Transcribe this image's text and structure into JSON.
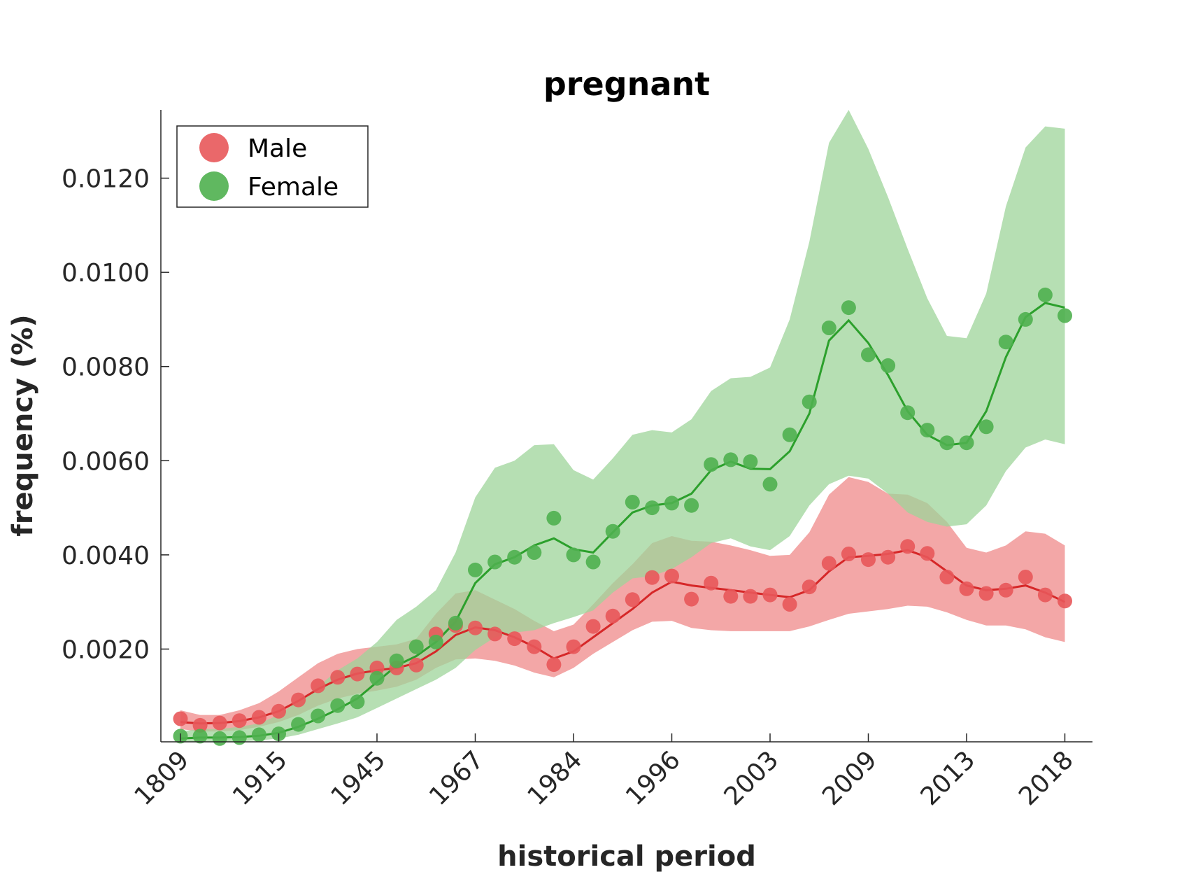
{
  "chart_data": {
    "type": "line",
    "title": "pregnant",
    "xlabel": "historical period",
    "ylabel": "frequency (%)",
    "x_tick_labels": [
      "1809",
      "1915",
      "1945",
      "1967",
      "1984",
      "1996",
      "2003",
      "2009",
      "2013",
      "2018"
    ],
    "x_tick_indices": [
      0,
      5,
      10,
      15,
      20,
      25,
      30,
      35,
      40,
      45
    ],
    "y_ticks": [
      0.002,
      0.004,
      0.006,
      0.008,
      0.01,
      0.012
    ],
    "y_tick_labels": [
      "0.0020",
      "0.0040",
      "0.0060",
      "0.0080",
      "0.0100",
      "0.0120"
    ],
    "ylim": [
      3e-05,
      0.01345
    ],
    "grid": false,
    "legend_position": "top-left",
    "series": [
      {
        "name": "Male",
        "color": "#d62728",
        "marker_color": "#e8585a",
        "band_color": "#ef8a8a",
        "points": [
          0.00052,
          0.00038,
          0.00043,
          0.00048,
          0.00055,
          0.00068,
          0.00092,
          0.00122,
          0.0014,
          0.00147,
          0.0016,
          0.0016,
          0.00166,
          0.00232,
          0.0025,
          0.00245,
          0.00232,
          0.00222,
          0.00205,
          0.00167,
          0.00205,
          0.00248,
          0.0027,
          0.00305,
          0.00352,
          0.00355,
          0.00306,
          0.0034,
          0.00312,
          0.00312,
          0.00315,
          0.00295,
          0.00332,
          0.00382,
          0.00402,
          0.0039,
          0.00395,
          0.00418,
          0.00403,
          0.00353,
          0.00328,
          0.00318,
          0.00325,
          0.00353,
          0.00315,
          0.00302
        ],
        "smooth": [
          0.00045,
          0.00042,
          0.00043,
          0.00047,
          0.00055,
          0.00068,
          0.0009,
          0.00115,
          0.00135,
          0.00148,
          0.00155,
          0.0016,
          0.0017,
          0.00195,
          0.0023,
          0.00246,
          0.0024,
          0.00225,
          0.00205,
          0.0018,
          0.00195,
          0.00225,
          0.00255,
          0.00285,
          0.0032,
          0.00343,
          0.00335,
          0.0033,
          0.00325,
          0.0032,
          0.00315,
          0.0031,
          0.00325,
          0.00365,
          0.00395,
          0.00398,
          0.00402,
          0.0041,
          0.00395,
          0.00365,
          0.00335,
          0.00325,
          0.00328,
          0.00335,
          0.0032,
          0.003
        ],
        "lower": [
          0.0003,
          0.00025,
          0.00025,
          0.00028,
          0.00035,
          0.00045,
          0.0006,
          0.0008,
          0.00095,
          0.00105,
          0.00112,
          0.0012,
          0.00135,
          0.0016,
          0.00178,
          0.0018,
          0.00175,
          0.00165,
          0.0015,
          0.0014,
          0.0016,
          0.0019,
          0.00215,
          0.0024,
          0.00258,
          0.0026,
          0.00245,
          0.0024,
          0.00238,
          0.00238,
          0.00238,
          0.00238,
          0.00248,
          0.00262,
          0.00275,
          0.0028,
          0.00285,
          0.00292,
          0.0029,
          0.00278,
          0.00262,
          0.0025,
          0.0025,
          0.00242,
          0.00225,
          0.00215
        ],
        "upper": [
          0.0007,
          0.0006,
          0.0006,
          0.0007,
          0.00085,
          0.0011,
          0.0014,
          0.0017,
          0.0019,
          0.002,
          0.00205,
          0.0021,
          0.00222,
          0.00275,
          0.00318,
          0.00325,
          0.00305,
          0.00285,
          0.0026,
          0.00238,
          0.00252,
          0.00295,
          0.0034,
          0.0038,
          0.00425,
          0.0044,
          0.0043,
          0.00428,
          0.0042,
          0.0041,
          0.00398,
          0.004,
          0.00448,
          0.00528,
          0.00565,
          0.00555,
          0.0053,
          0.00528,
          0.0051,
          0.0047,
          0.00415,
          0.00405,
          0.0042,
          0.0045,
          0.00445,
          0.0042
        ]
      },
      {
        "name": "Female",
        "color": "#2ca02c",
        "marker_color": "#4fb04f",
        "band_color": "#9ed49a",
        "points": [
          0.00015,
          0.00015,
          0.0001,
          0.00012,
          0.00018,
          0.0002,
          0.0004,
          0.00058,
          0.0008,
          0.00088,
          0.00138,
          0.00175,
          0.00205,
          0.00215,
          0.00255,
          0.00368,
          0.00385,
          0.00395,
          0.00405,
          0.00478,
          0.004,
          0.00385,
          0.0045,
          0.00512,
          0.005,
          0.0051,
          0.00505,
          0.00592,
          0.00602,
          0.00598,
          0.0055,
          0.00655,
          0.00725,
          0.00882,
          0.00925,
          0.00825,
          0.00802,
          0.00702,
          0.00665,
          0.00638,
          0.00638,
          0.00672,
          0.00852,
          0.009,
          0.00952,
          0.00908
        ],
        "smooth": [
          0.0001,
          0.00012,
          0.00012,
          0.00013,
          0.00016,
          0.00022,
          0.00035,
          0.00052,
          0.00072,
          0.00095,
          0.0013,
          0.00165,
          0.00185,
          0.00215,
          0.00258,
          0.0034,
          0.0038,
          0.00395,
          0.0042,
          0.00435,
          0.00412,
          0.00405,
          0.00448,
          0.0049,
          0.00505,
          0.0051,
          0.0053,
          0.0058,
          0.00598,
          0.00583,
          0.00582,
          0.0062,
          0.007,
          0.00855,
          0.00898,
          0.0085,
          0.00782,
          0.00705,
          0.00655,
          0.00633,
          0.00638,
          0.00705,
          0.0082,
          0.00905,
          0.00935,
          0.00925
        ],
        "lower": [
          3e-05,
          3e-05,
          3e-05,
          4e-05,
          6e-05,
          0.0001,
          0.00018,
          0.0003,
          0.00042,
          0.00055,
          0.00075,
          0.00095,
          0.00115,
          0.00135,
          0.0016,
          0.00198,
          0.00225,
          0.00235,
          0.0024,
          0.00255,
          0.00268,
          0.00282,
          0.0032,
          0.0035,
          0.00355,
          0.0037,
          0.00395,
          0.00425,
          0.00435,
          0.00418,
          0.0041,
          0.0044,
          0.00505,
          0.0055,
          0.00568,
          0.00562,
          0.0053,
          0.0049,
          0.0047,
          0.0046,
          0.00465,
          0.00505,
          0.00578,
          0.00628,
          0.00645,
          0.00635
        ],
        "upper": [
          0.00025,
          0.0003,
          0.0003,
          0.00035,
          0.00042,
          0.0006,
          0.0009,
          0.0012,
          0.00155,
          0.0018,
          0.00215,
          0.00262,
          0.0029,
          0.00325,
          0.00405,
          0.00522,
          0.00585,
          0.006,
          0.00633,
          0.00635,
          0.0058,
          0.0056,
          0.00605,
          0.00655,
          0.00665,
          0.0066,
          0.00688,
          0.00748,
          0.00775,
          0.00778,
          0.00798,
          0.009,
          0.01065,
          0.01275,
          0.01345,
          0.01262,
          0.0116,
          0.0105,
          0.00945,
          0.00865,
          0.0086,
          0.00955,
          0.0114,
          0.01265,
          0.0131,
          0.01305
        ]
      }
    ]
  }
}
